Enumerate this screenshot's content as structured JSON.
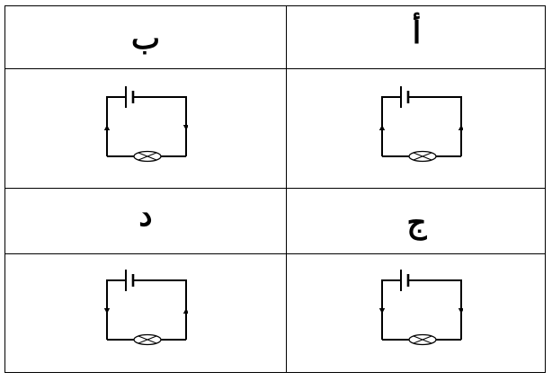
{
  "table": {
    "header_row_1": {
      "right": "أ",
      "left": "ب"
    },
    "header_row_2": {
      "right": "ج",
      "left": "د"
    }
  },
  "circuits": [
    {
      "id": "a",
      "left_arrow": "up",
      "right_arrow": "up"
    },
    {
      "id": "b",
      "left_arrow": "up",
      "right_arrow": "down"
    },
    {
      "id": "c",
      "left_arrow": "down",
      "right_arrow": "down"
    },
    {
      "id": "d",
      "left_arrow": "down",
      "right_arrow": "up"
    }
  ]
}
